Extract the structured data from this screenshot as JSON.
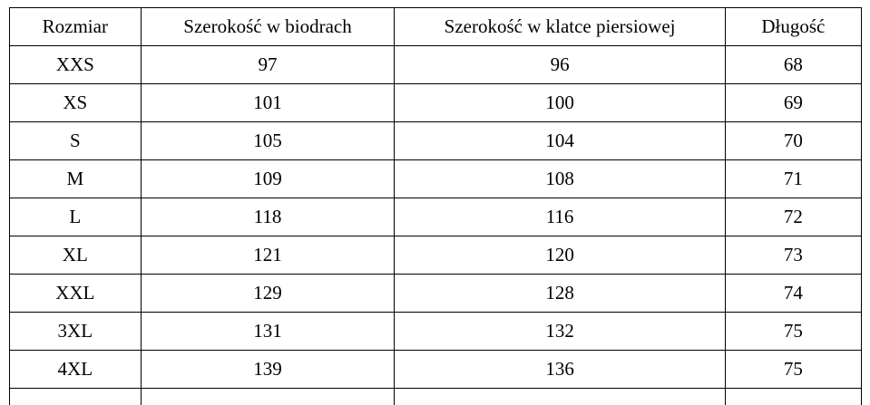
{
  "table": {
    "columns": [
      "Rozmiar",
      "Szerokość w biodrach",
      "Szerokość w klatce piersiowej",
      "Długość"
    ],
    "rows": [
      [
        "XXS",
        "97",
        "96",
        "68"
      ],
      [
        "XS",
        "101",
        "100",
        "69"
      ],
      [
        "S",
        "105",
        "104",
        "70"
      ],
      [
        "M",
        "109",
        "108",
        "71"
      ],
      [
        "L",
        "118",
        "116",
        "72"
      ],
      [
        "XL",
        "121",
        "120",
        "73"
      ],
      [
        "XXL",
        "129",
        "128",
        "74"
      ],
      [
        "3XL",
        "131",
        "132",
        "75"
      ],
      [
        "4XL",
        "139",
        "136",
        "75"
      ]
    ]
  }
}
